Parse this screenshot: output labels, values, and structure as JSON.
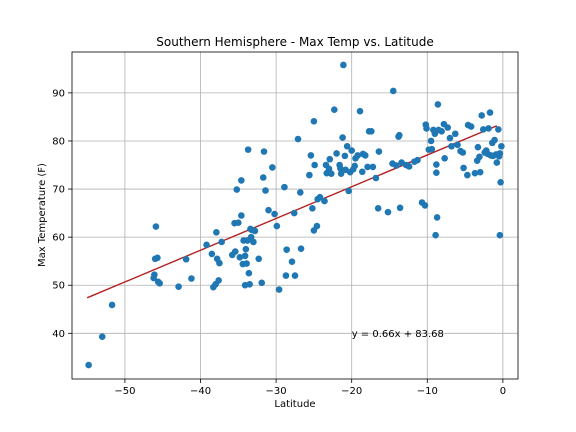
{
  "colors": {
    "points": "#1f77b4",
    "line": "#b22222",
    "grid": "#b0b0b0"
  },
  "chart_data": {
    "type": "scatter",
    "title": "Southern Hemisphere - Max Temp vs. Latitude",
    "xlabel": "Latitude",
    "ylabel": "Max Temperature (F)",
    "xlim": [
      -57,
      2
    ],
    "ylim": [
      30.5,
      98.5
    ],
    "xticks": [
      -50,
      -40,
      -30,
      -20,
      -10,
      0
    ],
    "xtick_labels": [
      "−50",
      "−40",
      "−30",
      "−20",
      "−10",
      "0"
    ],
    "yticks": [
      40,
      50,
      60,
      70,
      80,
      90
    ],
    "ytick_labels": [
      "40",
      "50",
      "60",
      "70",
      "80",
      "90"
    ],
    "grid": true,
    "regression": {
      "slope": 0.66,
      "intercept": 83.68,
      "x_range": [
        -55,
        -0.8
      ]
    },
    "annotation": {
      "text": "y = 0.66x + 83.68",
      "x": -20,
      "y": 40
    },
    "points": [
      [
        -54.8,
        33.4
      ],
      [
        -53,
        39.3
      ],
      [
        -51.7,
        45.9
      ],
      [
        -46.2,
        51.5
      ],
      [
        -46.1,
        52.2
      ],
      [
        -46,
        55.5
      ],
      [
        -45.9,
        62.2
      ],
      [
        -45.7,
        55.7
      ],
      [
        -45.6,
        50.7
      ],
      [
        -45.4,
        50.4
      ],
      [
        -42.9,
        49.7
      ],
      [
        -41.9,
        55.4
      ],
      [
        -41.2,
        51.4
      ],
      [
        -39.2,
        58.4
      ],
      [
        -38.5,
        56.5
      ],
      [
        -38.3,
        49.6
      ],
      [
        -38,
        50.2
      ],
      [
        -37.8,
        55.5
      ],
      [
        -37.9,
        61
      ],
      [
        -37.6,
        51
      ],
      [
        -37.5,
        54.6
      ],
      [
        -37.2,
        59
      ],
      [
        -35.8,
        56.3
      ],
      [
        -35.5,
        62.9
      ],
      [
        -35.4,
        57
      ],
      [
        -35.2,
        69.9
      ],
      [
        -35,
        63
      ],
      [
        -34.8,
        55.8
      ],
      [
        -34.6,
        64.5
      ],
      [
        -34.6,
        71.8
      ],
      [
        -34.4,
        54.4
      ],
      [
        -34.3,
        59.3
      ],
      [
        -34.1,
        56.1
      ],
      [
        -34,
        57.5
      ],
      [
        -34.1,
        50
      ],
      [
        -33.9,
        54.5
      ],
      [
        -33.8,
        59.3
      ],
      [
        -33.7,
        78.2
      ],
      [
        -33.6,
        52.5
      ],
      [
        -33.5,
        50.2
      ],
      [
        -33.4,
        61.7
      ],
      [
        -33.3,
        60
      ],
      [
        -33.2,
        61.5
      ],
      [
        -33,
        59
      ],
      [
        -32.8,
        61.3
      ],
      [
        -32.3,
        55.5
      ],
      [
        -31.9,
        50.5
      ],
      [
        -31.7,
        72.4
      ],
      [
        -31.6,
        77.8
      ],
      [
        -31.4,
        69.7
      ],
      [
        -31,
        65.6
      ],
      [
        -30.5,
        74.5
      ],
      [
        -30.2,
        64.8
      ],
      [
        -29.9,
        62.3
      ],
      [
        -29.6,
        49.1
      ],
      [
        -28.9,
        70.4
      ],
      [
        -28.7,
        52
      ],
      [
        -28.6,
        57.4
      ],
      [
        -27.9,
        54.9
      ],
      [
        -27.6,
        65
      ],
      [
        -27.5,
        52
      ],
      [
        -27.1,
        80.4
      ],
      [
        -26.8,
        69.3
      ],
      [
        -26.7,
        57.6
      ],
      [
        -25.6,
        72.9
      ],
      [
        -25.4,
        77
      ],
      [
        -25.2,
        66
      ],
      [
        -25,
        61.4
      ],
      [
        -25,
        84.1
      ],
      [
        -24.9,
        75
      ],
      [
        -24.6,
        62.3
      ],
      [
        -24.5,
        67.9
      ],
      [
        -24.2,
        68.3
      ],
      [
        -23.6,
        67.5
      ],
      [
        -23.4,
        75
      ],
      [
        -23.3,
        73.3
      ],
      [
        -23,
        74.2
      ],
      [
        -22.9,
        76.2
      ],
      [
        -22.7,
        73.2
      ],
      [
        -22.3,
        86.5
      ],
      [
        -22,
        77.4
      ],
      [
        -21.6,
        75
      ],
      [
        -21.5,
        74.3
      ],
      [
        -21.4,
        73.2
      ],
      [
        -21.2,
        80.7
      ],
      [
        -21.1,
        95.8
      ],
      [
        -20.9,
        76.9
      ],
      [
        -20.8,
        74
      ],
      [
        -20.6,
        78.9
      ],
      [
        -20.4,
        69.6
      ],
      [
        -20.2,
        73.5
      ],
      [
        -20,
        78
      ],
      [
        -19.8,
        74.1
      ],
      [
        -19.6,
        74.8
      ],
      [
        -19.5,
        76.4
      ],
      [
        -19.2,
        77
      ],
      [
        -18.9,
        86.2
      ],
      [
        -18.6,
        73.6
      ],
      [
        -18.5,
        77.3
      ],
      [
        -18.2,
        77
      ],
      [
        -17.9,
        74.6
      ],
      [
        -17.7,
        82
      ],
      [
        -17.4,
        82
      ],
      [
        -17.2,
        74.6
      ],
      [
        -16.8,
        72.3
      ],
      [
        -16.5,
        66
      ],
      [
        -16.4,
        77.8
      ],
      [
        -15.2,
        65.2
      ],
      [
        -14.6,
        75.3
      ],
      [
        -14.5,
        90.4
      ],
      [
        -14.1,
        74.9
      ],
      [
        -13.8,
        80.9
      ],
      [
        -13.7,
        81.2
      ],
      [
        -13.6,
        66.1
      ],
      [
        -13.4,
        75.5
      ],
      [
        -12.8,
        75
      ],
      [
        -12.4,
        74.7
      ],
      [
        -11.7,
        75.7
      ],
      [
        -11.3,
        76
      ],
      [
        -10.7,
        67.2
      ],
      [
        -10.3,
        66.6
      ],
      [
        -10.2,
        83.4
      ],
      [
        -10.1,
        82.6
      ],
      [
        -9.8,
        78.2
      ],
      [
        -9.5,
        80
      ],
      [
        -9.4,
        78.3
      ],
      [
        -9.2,
        82.3
      ],
      [
        -9,
        81.5
      ],
      [
        -8.9,
        82
      ],
      [
        -8.8,
        75.1
      ],
      [
        -8.8,
        73.4
      ],
      [
        -8.9,
        60.4
      ],
      [
        -8.7,
        64.1
      ],
      [
        -8.6,
        87.6
      ],
      [
        -8.5,
        82.3
      ],
      [
        -8.1,
        82
      ],
      [
        -7.8,
        83.5
      ],
      [
        -7.7,
        76.4
      ],
      [
        -7.3,
        82.8
      ],
      [
        -7,
        80.6
      ],
      [
        -6.8,
        78.9
      ],
      [
        -6.3,
        81.5
      ],
      [
        -6,
        79.2
      ],
      [
        -5.6,
        77.9
      ],
      [
        -5.3,
        77.6
      ],
      [
        -5.2,
        74.4
      ],
      [
        -4.7,
        72.9
      ],
      [
        -4.6,
        83.3
      ],
      [
        -4.2,
        83
      ],
      [
        -3.7,
        73.3
      ],
      [
        -3.4,
        75.9
      ],
      [
        -3.3,
        78.7
      ],
      [
        -3.1,
        76.7
      ],
      [
        -3,
        73.5
      ],
      [
        -2.8,
        85.3
      ],
      [
        -2.6,
        82.4
      ],
      [
        -2.4,
        77.6
      ],
      [
        -2.2,
        78
      ],
      [
        -2,
        77.3
      ],
      [
        -1.9,
        82.6
      ],
      [
        -1.7,
        85.9
      ],
      [
        -1.6,
        77
      ],
      [
        -1.4,
        79.6
      ],
      [
        -1.3,
        76.9
      ],
      [
        -1.1,
        80.2
      ],
      [
        -0.9,
        77.2
      ],
      [
        -0.8,
        75.5
      ],
      [
        -0.6,
        82.4
      ],
      [
        -0.5,
        76.8
      ],
      [
        -0.4,
        77.4
      ],
      [
        -0.3,
        71.4
      ],
      [
        -0.4,
        60.4
      ],
      [
        -0.2,
        78.9
      ]
    ]
  }
}
